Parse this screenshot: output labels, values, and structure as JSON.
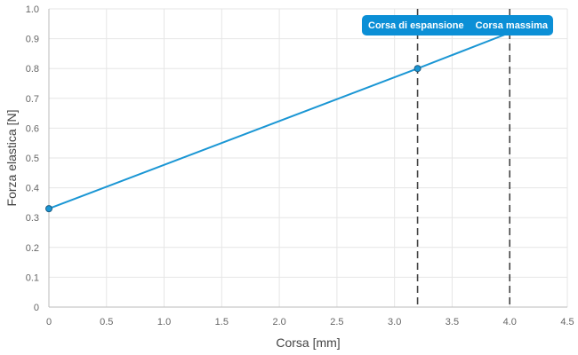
{
  "chart_data": {
    "type": "line",
    "title": "",
    "xlabel": "Corsa [mm]",
    "ylabel": "Forza elastica [N]",
    "xlim": [
      0,
      4.5
    ],
    "ylim": [
      0,
      1.0
    ],
    "x_ticks": [
      0,
      0.5,
      1.0,
      1.5,
      2.0,
      2.5,
      3.0,
      3.5,
      4.0,
      4.5
    ],
    "x_tick_labels": [
      "0",
      "0.5",
      "1.0",
      "1.5",
      "2.0",
      "2.5",
      "3.0",
      "3.5",
      "4.0",
      "4.5"
    ],
    "y_ticks": [
      0,
      0.1,
      0.2,
      0.3,
      0.4,
      0.5,
      0.6,
      0.7,
      0.8,
      0.9,
      1.0
    ],
    "y_tick_labels": [
      "0",
      "0.1",
      "0.2",
      "0.3",
      "0.4",
      "0.5",
      "0.6",
      "0.7",
      "0.8",
      "0.9",
      "1.0"
    ],
    "grid": true,
    "series": [
      {
        "color": "#1a96d4",
        "x": [
          0,
          3.2,
          4.0
        ],
        "y": [
          0.33,
          0.8,
          0.92
        ]
      }
    ],
    "markers": [
      {
        "x": 0,
        "y": 0.33
      },
      {
        "x": 3.2,
        "y": 0.8
      }
    ],
    "vertical_lines": [
      {
        "x": 3.2,
        "label": "Corsa di espansione",
        "style": "dashed",
        "color": "#444444"
      },
      {
        "x": 4.0,
        "label": "Corsa massima",
        "style": "dashed",
        "color": "#444444"
      }
    ],
    "annotation_box_color": "#0b8fd6"
  }
}
